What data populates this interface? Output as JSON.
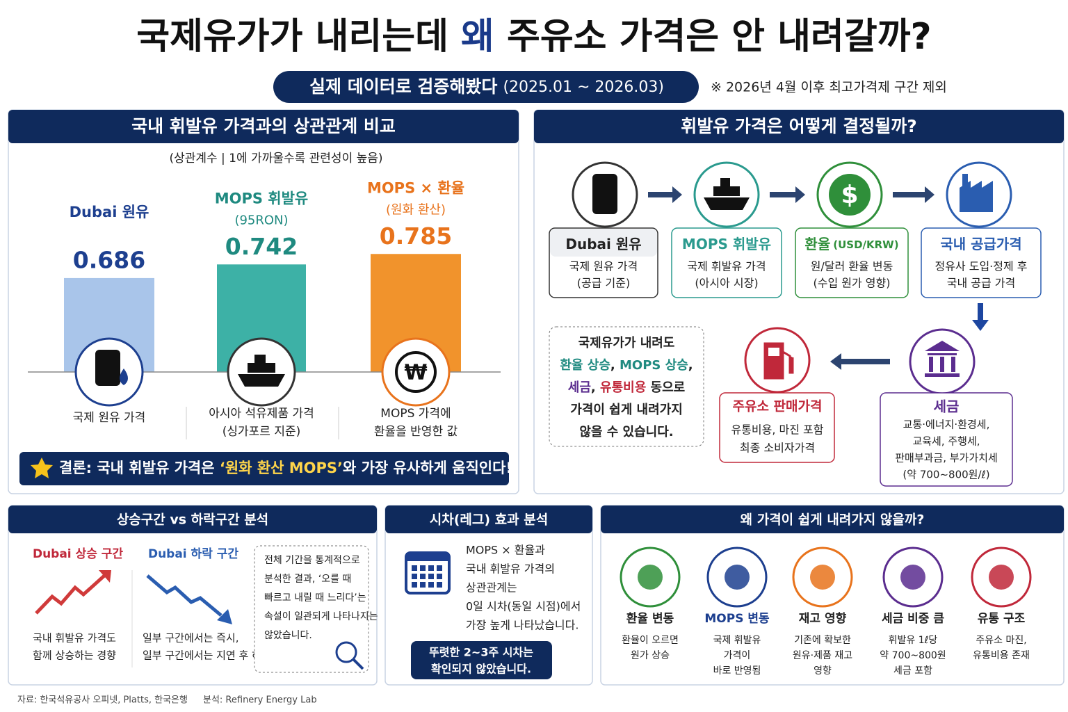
{
  "header": {
    "title_parts": [
      "국제유가가 내리는데 ",
      "왜",
      " 주유소 가격은 안 내려갈까?"
    ],
    "subtitle": "실제 데이터로 검증해봤다",
    "period": "(2025.01 ~ 2026.03)",
    "note": "※ 2026년 4월 이후 최고가격제 구간 제외"
  },
  "correlation": {
    "title": "국내 휘발유 가격과의 상관관계 비교",
    "subtitle": "(상관계수 | 1에 가까울수록 관련성이 높음)",
    "mops_note": "(95RON)",
    "krw_note": "(원화 환산)",
    "descriptions": [
      [
        "국제 원유 가격"
      ],
      [
        "아시아 석유제품 가격",
        "(싱가포르 지준)"
      ],
      [
        "MOPS 가격에",
        "환율을 반영한 값"
      ]
    ],
    "conclusion": [
      "결론: 국내 휘발유 가격은 ",
      "‘원화 환산 MOPS’",
      "와 가장 유사하게 움직인다!"
    ]
  },
  "chart_data": {
    "type": "bar",
    "categories": [
      "Dubai 원유",
      "MOPS 휘발유",
      "MOPS × 환율"
    ],
    "values": [
      0.686,
      0.742,
      0.785
    ],
    "colors": [
      "#a9c5ea",
      "#3db1a6",
      "#f1932c"
    ],
    "label_colors": [
      "#1d3f8f",
      "#1f8a80",
      "#e8731c"
    ],
    "ylim": [
      0.3,
      0.8
    ]
  },
  "flow": {
    "title": "휘발유 가격은 어떻게 결정될까?",
    "steps": [
      {
        "title": "Dubai 원유",
        "lines": [
          "국제 원유 가격",
          "(공급 기준)"
        ]
      },
      {
        "title": "MOPS 휘발유",
        "lines": [
          "국제 휘발유 가격",
          "(아시아 시장)"
        ]
      },
      {
        "title": "환율",
        "title_extra": "(USD/KRW)",
        "lines": [
          "원/달러 환율 변동",
          "(수입 원가 영향)"
        ]
      },
      {
        "title": "국내 공급가격",
        "lines": [
          "정유사 도입·정제 후",
          "국내 공급 가격"
        ]
      }
    ],
    "tax": {
      "title": "세금",
      "lines": [
        "교통·에너지·환경세,",
        "교육세, 주행세,",
        "판매부과금, 부가가치세",
        "(약 700~800원/ℓ)"
      ]
    },
    "station": {
      "title": "주유소 판매가격",
      "lines": [
        "유통비용, 마진 포함",
        "최종 소비자가격"
      ]
    },
    "note": [
      [
        "국제유가가 내려도"
      ],
      [
        "환율 상승",
        ", ",
        "MOPS 상승",
        ","
      ],
      [
        "세금",
        ", ",
        "유통비용",
        " 동으로"
      ],
      [
        "가격이 쉽게 내려가지"
      ],
      [
        "않을 수 있습니다."
      ]
    ]
  },
  "trend": {
    "title": "상승구간 vs 하락구간 분석",
    "rise_label": "Dubai 상승 구간",
    "fall_label": "Dubai 하락 구간",
    "rise_lines": [
      "국내 휘발유 가격도",
      "함께 상승하는 경향"
    ],
    "fall_lines": [
      "일부 구간에서는 즉시,",
      "일부 구간에서는 지연 후 하락"
    ],
    "box_lines": [
      "전체 기간을 통계적으로",
      "분석한 결과, ‘오를 때",
      "빠르고 내릴 때 느리다’는",
      "속설이 일관되게 나타나지는",
      "않았습니다."
    ]
  },
  "lag": {
    "title": "시차(레그) 효과 분석",
    "lines": [
      "MOPS × 환율과",
      "국내 휘발유 가격의",
      "상관관계는",
      "0일 시차(동일 시점)에서",
      "가장 높게 나타났습니다."
    ],
    "pill": [
      "뚜렷한 2~3주 시차는",
      "확인되지 않았습니다."
    ]
  },
  "reasons": {
    "title": "왜 가격이 쉽게 내려가지 않을까?",
    "items": [
      {
        "title": "환율 변동",
        "lines": [
          "환율이 오르면",
          "원가 상승"
        ]
      },
      {
        "title": "MOPS 변동",
        "lines": [
          "국제 휘발유",
          "가격이",
          "바로 반영됨"
        ]
      },
      {
        "title": "재고 영향",
        "lines": [
          "기존에 확보한",
          "원유·제품 재고",
          "영향"
        ]
      },
      {
        "title": "세금 비중 큼",
        "lines": [
          "휘발유 1ℓ당",
          "약 700~800원",
          "세금 포함"
        ]
      },
      {
        "title": "유통 구조",
        "lines": [
          "주유소 마진,",
          "유통비용 존재"
        ]
      }
    ]
  },
  "footer": {
    "source": "자료: 한국석유공사 오피넷, Platts, 한국은행",
    "analysis": "분석: Refinery Energy Lab"
  }
}
